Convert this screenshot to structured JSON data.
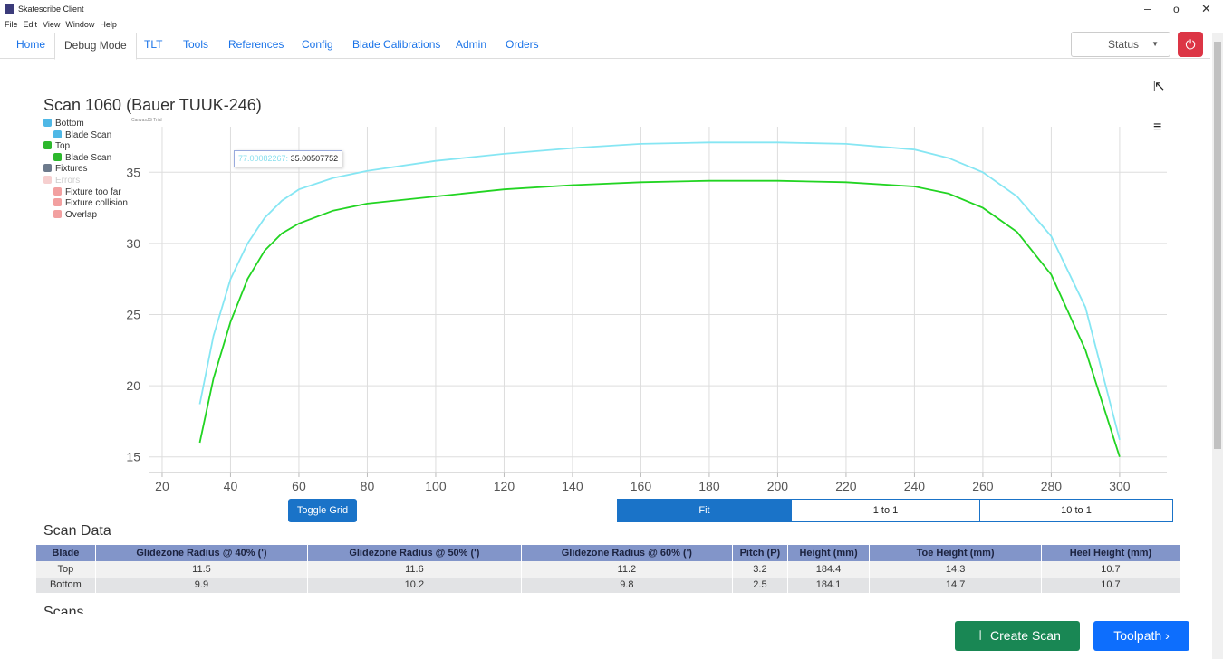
{
  "window": {
    "title": "Skatescribe Client",
    "menu": [
      "File",
      "Edit",
      "View",
      "Window",
      "Help"
    ]
  },
  "tabs": [
    {
      "label": "Home"
    },
    {
      "label": "Debug Mode",
      "active": true
    },
    {
      "label": "TLT"
    },
    {
      "label": "Tools"
    },
    {
      "label": "References"
    },
    {
      "label": "Config"
    },
    {
      "label": "Blade Calibrations"
    },
    {
      "label": "Admin"
    },
    {
      "label": "Orders"
    }
  ],
  "status": "Status",
  "chart_data": {
    "type": "line",
    "title": "Scan 1060 (Bauer TUUK-246)",
    "credit": "CanvasJS Trial",
    "x": [
      31,
      35,
      40,
      45,
      50,
      55,
      60,
      70,
      80,
      100,
      120,
      140,
      160,
      180,
      200,
      220,
      240,
      250,
      260,
      270,
      280,
      290,
      300
    ],
    "series": [
      {
        "group": "Bottom",
        "name": "Blade Scan",
        "color": "#86e6f3",
        "checkbox": "#4fb8e6",
        "values": [
          18.7,
          23.5,
          27.5,
          30,
          31.8,
          33,
          33.8,
          34.6,
          35.1,
          35.8,
          36.3,
          36.7,
          37.0,
          37.1,
          37.1,
          37.0,
          36.6,
          36.0,
          35.0,
          33.3,
          30.5,
          25.5,
          16.2
        ]
      },
      {
        "group": "Top",
        "name": "Blade Scan",
        "color": "#22d422",
        "checkbox": "#2db82d",
        "values": [
          16.0,
          20.5,
          24.5,
          27.5,
          29.5,
          30.7,
          31.4,
          32.3,
          32.8,
          33.3,
          33.8,
          34.1,
          34.3,
          34.4,
          34.4,
          34.3,
          34.0,
          33.5,
          32.5,
          30.8,
          27.8,
          22.5,
          15.0
        ]
      }
    ],
    "legend_groups": [
      {
        "label": "Fixtures",
        "color": "#6d7a8c",
        "items": []
      },
      {
        "label": "Errors",
        "color": "#f6cfcf",
        "faded": true,
        "items": [
          {
            "label": "Fixture too far",
            "color": "#f2a0a0"
          },
          {
            "label": "Fixture collision",
            "color": "#f2a0a0"
          },
          {
            "label": "Overlap",
            "color": "#f2a0a0"
          }
        ]
      }
    ],
    "tooltip": {
      "x": "77.00082267:",
      "y": "35.00507752"
    },
    "xlim": [
      16.3,
      313.8
    ],
    "xticks": [
      20,
      40,
      60,
      80,
      100,
      120,
      140,
      160,
      180,
      200,
      220,
      240,
      260,
      280,
      300
    ],
    "ylim": [
      13.9,
      38.2
    ],
    "yticks": [
      15,
      20,
      25,
      30,
      35
    ],
    "grid": true
  },
  "controls": {
    "toggle_grid": "Toggle Grid",
    "zoom": [
      {
        "label": "Fit",
        "active": true
      },
      {
        "label": "1 to 1"
      },
      {
        "label": "10 to 1"
      }
    ]
  },
  "table": {
    "title": "Scan Data",
    "headers": [
      "Blade",
      "Glidezone Radius @ 40% (')",
      "Glidezone Radius @ 50% (')",
      "Glidezone Radius @ 60% (')",
      "Pitch (P)",
      "Height (mm)",
      "Toe Height (mm)",
      "Heel Height (mm)"
    ],
    "rows": [
      [
        "Top",
        11.5,
        11.6,
        11.2,
        3.2,
        184.4,
        14.3,
        10.7
      ],
      [
        "Bottom",
        9.9,
        10.2,
        9.8,
        2.5,
        184.1,
        14.7,
        10.7
      ]
    ]
  },
  "scans_title": "Scans",
  "buttons": {
    "create": "Create Scan",
    "toolpath": "Toolpath"
  }
}
